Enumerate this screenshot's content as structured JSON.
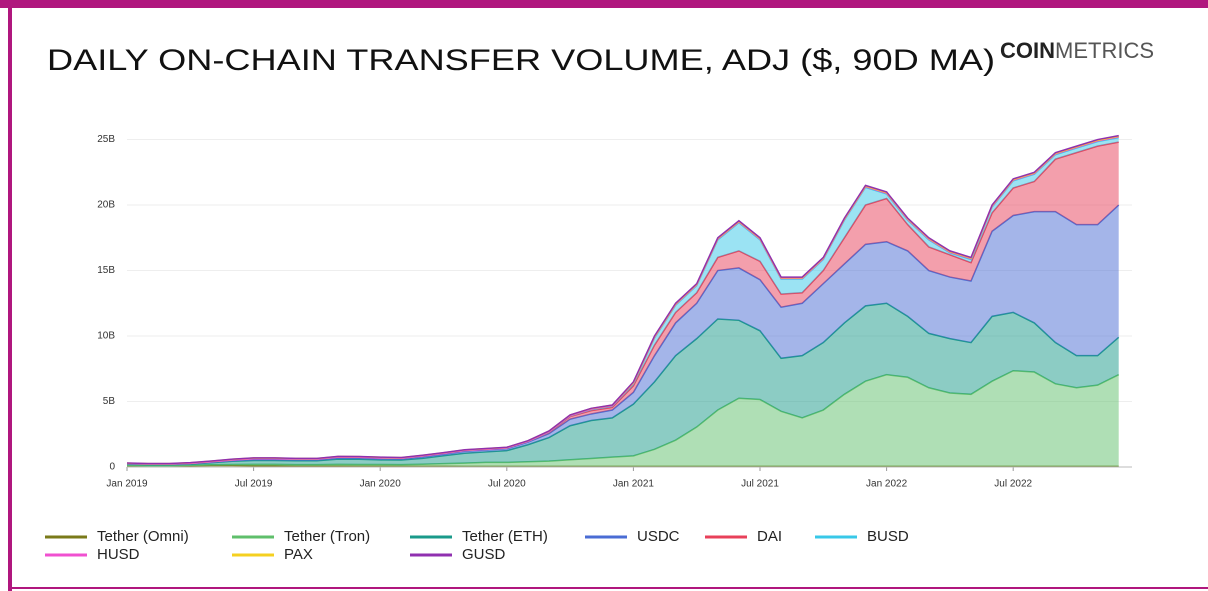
{
  "chart_data": {
    "type": "area",
    "stacked": true,
    "title": "DAILY ON-CHAIN TRANSFER VOLUME, ADJ ($, 90D MA)",
    "logo": {
      "bold": "COIN",
      "light": "METRICS"
    },
    "x": [
      "2019-01",
      "2019-02",
      "2019-03",
      "2019-04",
      "2019-05",
      "2019-06",
      "2019-07",
      "2019-08",
      "2019-09",
      "2019-10",
      "2019-11",
      "2019-12",
      "2020-01",
      "2020-02",
      "2020-03",
      "2020-04",
      "2020-05",
      "2020-06",
      "2020-07",
      "2020-08",
      "2020-09",
      "2020-10",
      "2020-11",
      "2020-12",
      "2021-01",
      "2021-02",
      "2021-03",
      "2021-04",
      "2021-05",
      "2021-06",
      "2021-07",
      "2021-08",
      "2021-09",
      "2021-10",
      "2021-11",
      "2021-12",
      "2022-01",
      "2022-02",
      "2022-03",
      "2022-04",
      "2022-05",
      "2022-06",
      "2022-07",
      "2022-08",
      "2022-09",
      "2022-10",
      "2022-11",
      "2022-12"
    ],
    "xticks": [
      {
        "value": "2019-01",
        "label": "Jan 2019"
      },
      {
        "value": "2019-07",
        "label": "Jul 2019"
      },
      {
        "value": "2020-01",
        "label": "Jan 2020"
      },
      {
        "value": "2020-07",
        "label": "Jul 2020"
      },
      {
        "value": "2021-01",
        "label": "Jan 2021"
      },
      {
        "value": "2021-07",
        "label": "Jul 2021"
      },
      {
        "value": "2022-01",
        "label": "Jan 2022"
      },
      {
        "value": "2022-07",
        "label": "Jul 2022"
      }
    ],
    "ylim": [
      0,
      25.5
    ],
    "yticks": [
      0,
      {
        "value": 5,
        "label": "5B"
      },
      {
        "value": 10,
        "label": "10B"
      },
      {
        "value": 15,
        "label": "15B"
      },
      {
        "value": 20,
        "label": "20B"
      },
      {
        "value": 25,
        "label": "25B"
      }
    ],
    "grid": true,
    "series": [
      {
        "name": "Tether (Omni)",
        "color": "#7a7a1a",
        "values": [
          0.1,
          0.08,
          0.08,
          0.1,
          0.12,
          0.12,
          0.1,
          0.1,
          0.08,
          0.08,
          0.08,
          0.07,
          0.07,
          0.06,
          0.06,
          0.06,
          0.05,
          0.05,
          0.05,
          0.05,
          0.05,
          0.05,
          0.05,
          0.05,
          0.05,
          0.05,
          0.05,
          0.05,
          0.05,
          0.05,
          0.05,
          0.05,
          0.05,
          0.05,
          0.05,
          0.05,
          0.05,
          0.05,
          0.05,
          0.05,
          0.05,
          0.05,
          0.05,
          0.05,
          0.05,
          0.05,
          0.05,
          0.05
        ]
      },
      {
        "name": "Tether (Tron)",
        "color": "#5fbf6b",
        "values": [
          0.02,
          0.02,
          0.02,
          0.03,
          0.05,
          0.07,
          0.1,
          0.1,
          0.1,
          0.1,
          0.12,
          0.12,
          0.12,
          0.12,
          0.15,
          0.2,
          0.25,
          0.3,
          0.3,
          0.35,
          0.4,
          0.5,
          0.6,
          0.7,
          0.8,
          1.3,
          2,
          3,
          4.3,
          5.2,
          5.1,
          4.2,
          3.7,
          4.3,
          5.5,
          6.5,
          7,
          6.8,
          6,
          5.6,
          5.5,
          6.5,
          7.3,
          7.2,
          6.3,
          6,
          6.2,
          7
        ]
      },
      {
        "name": "Tether (ETH)",
        "color": "#1a9a8a",
        "values": [
          0.1,
          0.08,
          0.08,
          0.1,
          0.15,
          0.25,
          0.3,
          0.3,
          0.3,
          0.3,
          0.4,
          0.4,
          0.35,
          0.35,
          0.45,
          0.6,
          0.75,
          0.8,
          0.9,
          1.3,
          1.8,
          2.6,
          2.9,
          3.0,
          3.95,
          5.15,
          6.45,
          6.75,
          6.95,
          5.95,
          5.25,
          4.05,
          4.75,
          5.15,
          5.45,
          5.75,
          5.45,
          4.65,
          4.15,
          4.15,
          3.95,
          4.95,
          4.45,
          3.75,
          3.15,
          2.45,
          2.25,
          2.85
        ]
      },
      {
        "name": "USDC",
        "color": "#4a6cd4",
        "values": [
          0.03,
          0.03,
          0.03,
          0.03,
          0.05,
          0.05,
          0.08,
          0.08,
          0.08,
          0.08,
          0.1,
          0.1,
          0.1,
          0.1,
          0.12,
          0.12,
          0.15,
          0.15,
          0.15,
          0.2,
          0.3,
          0.5,
          0.5,
          0.6,
          0.9,
          2,
          2.5,
          2.7,
          3.7,
          4,
          3.9,
          3.9,
          4,
          4.5,
          4.5,
          4.7,
          4.7,
          5,
          4.8,
          4.7,
          4.7,
          6.5,
          7.4,
          8.5,
          10,
          10,
          10,
          10.1
        ]
      },
      {
        "name": "DAI",
        "color": "#e8405a",
        "values": [
          0.02,
          0.02,
          0.02,
          0.02,
          0.03,
          0.04,
          0.05,
          0.05,
          0.04,
          0.04,
          0.05,
          0.05,
          0.05,
          0.04,
          0.06,
          0.06,
          0.06,
          0.05,
          0.05,
          0.05,
          0.1,
          0.2,
          0.25,
          0.2,
          0.5,
          0.8,
          0.8,
          0.8,
          1,
          1.3,
          1.4,
          1,
          0.8,
          1,
          2,
          3,
          3.3,
          2,
          1.8,
          1.7,
          1.4,
          1.4,
          2.1,
          2.3,
          4,
          5.5,
          6,
          4.8
        ]
      },
      {
        "name": "BUSD",
        "color": "#38c8e8",
        "values": [
          0,
          0,
          0,
          0,
          0,
          0,
          0,
          0,
          0,
          0,
          0,
          0,
          0,
          0,
          0,
          0,
          0,
          0,
          0,
          0,
          0.02,
          0.05,
          0.1,
          0.1,
          0.15,
          0.55,
          0.55,
          0.55,
          1.35,
          2.15,
          1.65,
          1.15,
          1.05,
          0.85,
          1.35,
          1.35,
          0.35,
          0.35,
          0.55,
          0.15,
          0.25,
          0.45,
          0.55,
          0.55,
          0.35,
          0.35,
          0.35,
          0.35
        ]
      },
      {
        "name": "HUSD",
        "color": "#f050d0",
        "values": [
          0,
          0,
          0,
          0,
          0,
          0,
          0,
          0,
          0,
          0,
          0,
          0,
          0,
          0,
          0,
          0,
          0,
          0,
          0,
          0,
          0.02,
          0.02,
          0.02,
          0.02,
          0.05,
          0.05,
          0.05,
          0.05,
          0.05,
          0.05,
          0.05,
          0.05,
          0.05,
          0.05,
          0.05,
          0.05,
          0.05,
          0.05,
          0.05,
          0.05,
          0.05,
          0.05,
          0.05,
          0.05,
          0.05,
          0.05,
          0.05,
          0.05
        ]
      },
      {
        "name": "PAX",
        "color": "#f5d020",
        "values": [
          0.03,
          0.03,
          0.03,
          0.04,
          0.05,
          0.06,
          0.06,
          0.06,
          0.05,
          0.05,
          0.05,
          0.05,
          0.05,
          0.05,
          0.05,
          0.05,
          0.05,
          0.05,
          0.05,
          0.05,
          0.05,
          0.05,
          0.05,
          0.05,
          0.05,
          0.05,
          0.05,
          0.05,
          0.05,
          0.05,
          0.05,
          0.05,
          0.05,
          0.05,
          0.05,
          0.05,
          0.05,
          0.05,
          0.05,
          0.05,
          0.05,
          0.05,
          0.05,
          0.05,
          0.05,
          0.05,
          0.05,
          0.05
        ]
      },
      {
        "name": "GUSD",
        "color": "#9030b0",
        "values": [
          0.01,
          0.01,
          0.01,
          0.01,
          0.01,
          0.01,
          0.01,
          0.01,
          0.01,
          0.01,
          0.01,
          0.01,
          0.01,
          0.01,
          0.01,
          0.01,
          0.01,
          0.01,
          0.01,
          0.01,
          0.01,
          0.01,
          0.01,
          0.01,
          0.05,
          0.05,
          0.05,
          0.05,
          0.05,
          0.05,
          0.05,
          0.05,
          0.05,
          0.05,
          0.05,
          0.05,
          0.05,
          0.05,
          0.05,
          0.05,
          0.05,
          0.05,
          0.05,
          0.05,
          0.05,
          0.05,
          0.05,
          0.05
        ]
      }
    ]
  }
}
